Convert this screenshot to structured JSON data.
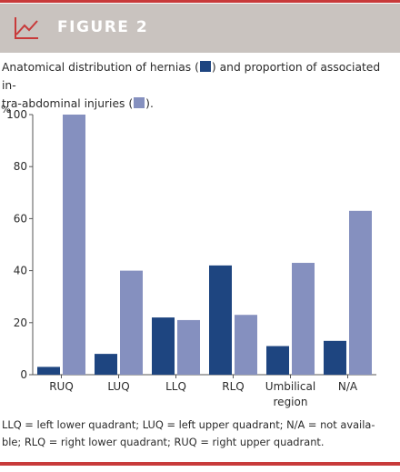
{
  "figure_label": "FIGURE 2",
  "caption": {
    "part1": "Anatomical distribution of hernias (",
    "part2": ") and proportion of associated in-",
    "part3": "tra-abdominal injuries (",
    "part4": ")."
  },
  "footnote": {
    "line1": "LLQ = left lower quadrant; LUQ = left upper quadrant; N/A = not availa-",
    "line2": "ble; RLQ = right lower quadrant; RUQ = right upper quadrant."
  },
  "colors": {
    "accent": "#c83a3a",
    "header_bg": "#c9c3bf",
    "hernias": "#1e4580",
    "injuries": "#8590bf"
  },
  "chart_data": {
    "type": "bar",
    "ylabel": "%",
    "ylim": [
      0,
      100
    ],
    "yticks": [
      0,
      20,
      40,
      60,
      80,
      100
    ],
    "grid": false,
    "categories": [
      [
        "RUQ"
      ],
      [
        "LUQ"
      ],
      [
        "LLQ"
      ],
      [
        "RLQ"
      ],
      [
        "Umbilical",
        "region"
      ],
      [
        "N/A"
      ]
    ],
    "series": [
      {
        "values": [
          3,
          8,
          22,
          42,
          11,
          13
        ]
      },
      {
        "values": [
          100,
          40,
          21,
          23,
          43,
          63
        ]
      }
    ]
  }
}
